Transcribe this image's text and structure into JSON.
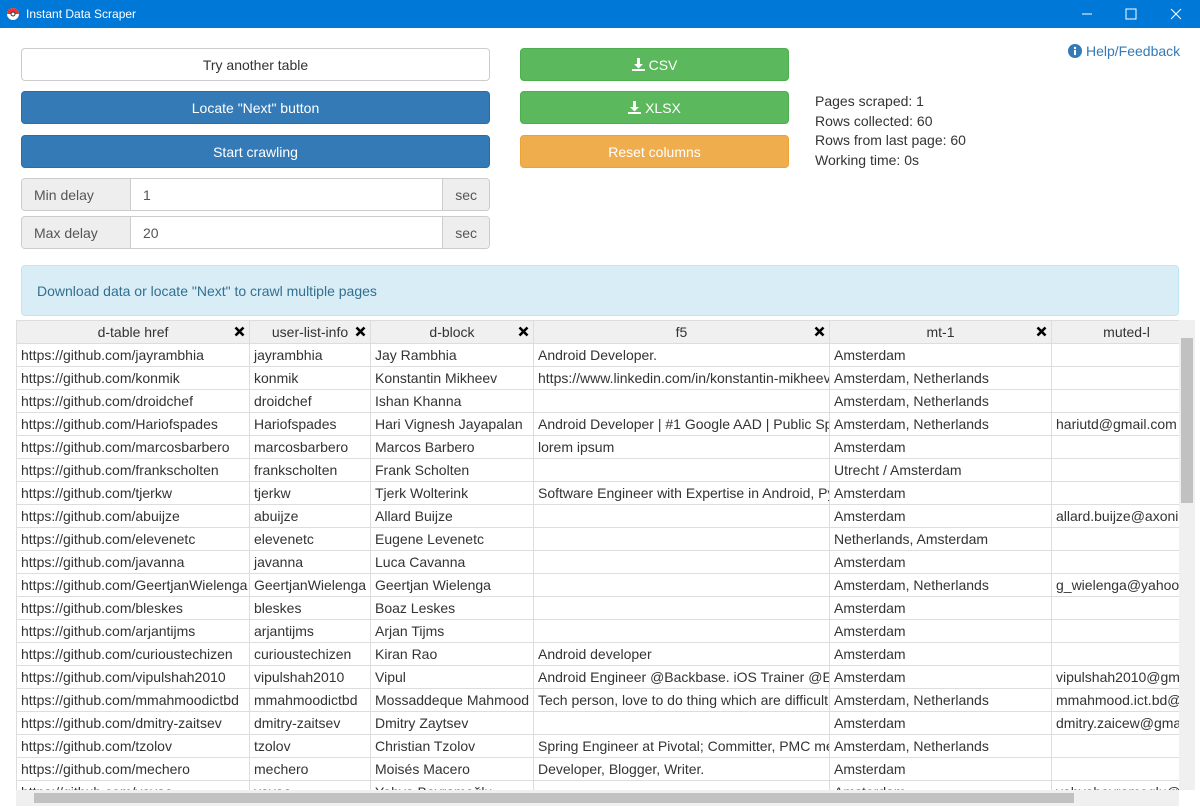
{
  "window": {
    "title": "Instant Data Scraper"
  },
  "buttons": {
    "try_another": "Try another table",
    "locate_next": "Locate \"Next\" button",
    "start_crawling": "Start crawling",
    "csv": "CSV",
    "xlsx": "XLSX",
    "reset_columns": "Reset columns"
  },
  "delays": {
    "min": {
      "label": "Min delay",
      "value": "1",
      "unit": "sec"
    },
    "max": {
      "label": "Max delay",
      "value": "20",
      "unit": "sec"
    }
  },
  "help": "Help/Feedback",
  "stats": [
    "Pages scraped: 1",
    "Rows collected: 60",
    "Rows from last page: 60",
    "Working time: 0s"
  ],
  "info": "Download data or locate \"Next\" to crawl multiple pages",
  "table": {
    "headers": [
      "d-table href",
      "user-list-info",
      "d-block",
      "f5",
      "mt-1",
      "muted-l"
    ],
    "rows": [
      [
        "https://github.com/jayrambhia",
        "jayrambhia",
        "Jay Rambhia",
        "Android Developer.",
        "Amsterdam",
        null
      ],
      [
        "https://github.com/konmik",
        "konmik",
        "Konstantin Mikheev",
        "https://www.linkedin.com/in/konstantin-mikheev-",
        "Amsterdam, Netherlands",
        null
      ],
      [
        "https://github.com/droidchef",
        "droidchef",
        "Ishan Khanna",
        null,
        "Amsterdam, Netherlands",
        null
      ],
      [
        "https://github.com/Hariofspades",
        "Hariofspades",
        "Hari Vignesh Jayapalan",
        "Android Developer | #1 Google AAD | Public Sp",
        "Amsterdam, Netherlands",
        "hariutd@gmail.com"
      ],
      [
        "https://github.com/marcosbarbero",
        "marcosbarbero",
        "Marcos Barbero",
        "lorem ipsum",
        "Amsterdam",
        null
      ],
      [
        "https://github.com/frankscholten",
        "frankscholten",
        "Frank Scholten",
        null,
        "Utrecht / Amsterdam",
        null
      ],
      [
        "https://github.com/tjerkw",
        "tjerkw",
        "Tjerk Wolterink",
        "Software Engineer with Expertise in Android, Py",
        "Amsterdam",
        null
      ],
      [
        "https://github.com/abuijze",
        "abuijze",
        "Allard Buijze",
        null,
        "Amsterdam",
        "allard.buijze@axoni"
      ],
      [
        "https://github.com/elevenetc",
        "elevenetc",
        "Eugene Levenetc",
        null,
        "Netherlands, Amsterdam",
        null
      ],
      [
        "https://github.com/javanna",
        "javanna",
        "Luca Cavanna",
        null,
        "Amsterdam",
        null
      ],
      [
        "https://github.com/GeertjanWielenga",
        "GeertjanWielenga",
        "Geertjan Wielenga",
        null,
        "Amsterdam, Netherlands",
        "g_wielenga@yahoo"
      ],
      [
        "https://github.com/bleskes",
        "bleskes",
        "Boaz Leskes",
        null,
        "Amsterdam",
        null
      ],
      [
        "https://github.com/arjantijms",
        "arjantijms",
        "Arjan Tijms",
        null,
        "Amsterdam",
        null
      ],
      [
        "https://github.com/curioustechizen",
        "curioustechizen",
        "Kiran Rao",
        "Android developer",
        "Amsterdam",
        null
      ],
      [
        "https://github.com/vipulshah2010",
        "vipulshah2010",
        "Vipul",
        "Android Engineer @Backbase. iOS Trainer @E",
        "Amsterdam",
        "vipulshah2010@gm"
      ],
      [
        "https://github.com/mmahmoodictbd",
        "mmahmoodictbd",
        "Mossaddeque Mahmood",
        "Tech person, love to do thing which are difficult",
        "Amsterdam, Netherlands",
        "mmahmood.ict.bd@"
      ],
      [
        "https://github.com/dmitry-zaitsev",
        "dmitry-zaitsev",
        "Dmitry Zaytsev",
        null,
        "Amsterdam",
        "dmitry.zaicew@gma"
      ],
      [
        "https://github.com/tzolov",
        "tzolov",
        "Christian Tzolov",
        "Spring Engineer at Pivotal; Committer, PMC me",
        "Amsterdam, Netherlands",
        null
      ],
      [
        "https://github.com/mechero",
        "mechero",
        "Moisés Macero",
        "Developer, Blogger, Writer.",
        "Amsterdam",
        null
      ],
      [
        "https://github.com/yavaa",
        "yavaa",
        "Yahya Bayramoğlu",
        null,
        "Amsterdam",
        "yahyabayramoglu@"
      ]
    ]
  }
}
